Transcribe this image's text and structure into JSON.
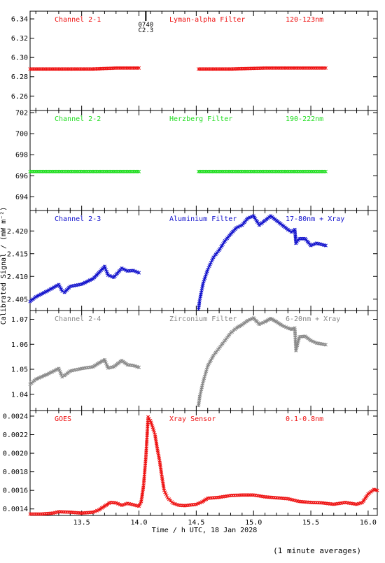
{
  "figure": {
    "ylabel": "Calibrated Signal / (mW m⁻²)",
    "xlabel": "Time / h UTC, 18 Jan 2028",
    "footnote": "(1 minute averages)",
    "flare_marker": {
      "time": "0740",
      "class": "C2.3",
      "x": 14.06
    }
  },
  "chart_data": [
    {
      "type": "scatter",
      "channel": "Channel 2-1",
      "filter": "Lyman-alpha Filter",
      "band": "120-123nm",
      "color": "#ee1111",
      "xlim": [
        13.05,
        16.08
      ],
      "ylim": [
        6.245,
        6.348
      ],
      "yticks": [
        6.26,
        6.28,
        6.3,
        6.32,
        6.34
      ],
      "ytick_labels": [
        "6.26",
        "6.28",
        "6.30",
        "6.32",
        "6.34"
      ],
      "series": [
        {
          "segment": 1,
          "x": [
            13.05,
            13.3,
            13.6,
            13.8,
            14.0
          ],
          "y": [
            6.288,
            6.288,
            6.288,
            6.289,
            6.289
          ]
        },
        {
          "segment": 2,
          "x": [
            14.52,
            14.8,
            15.1,
            15.4,
            15.63
          ],
          "y": [
            6.288,
            6.288,
            6.289,
            6.289,
            6.289
          ]
        }
      ]
    },
    {
      "type": "scatter",
      "channel": "Channel 2-2",
      "filter": "Herzberg Filter",
      "band": "190-222nm",
      "color": "#22dd22",
      "xlim": [
        13.05,
        16.08
      ],
      "ylim": [
        692.7,
        702.2
      ],
      "yticks": [
        694,
        696,
        698,
        700,
        702
      ],
      "ytick_labels": [
        "694",
        "696",
        "698",
        "700",
        "702"
      ],
      "series": [
        {
          "segment": 1,
          "x": [
            13.05,
            13.3,
            13.6,
            13.8,
            14.0
          ],
          "y": [
            696.4,
            696.4,
            696.4,
            696.4,
            696.4
          ]
        },
        {
          "segment": 2,
          "x": [
            14.52,
            14.8,
            15.1,
            15.4,
            15.63
          ],
          "y": [
            696.4,
            696.4,
            696.4,
            696.4,
            696.4
          ]
        }
      ]
    },
    {
      "type": "scatter",
      "channel": "Channel 2-3",
      "filter": "Aluminium Filter",
      "band": "17-80nm + Xray",
      "color": "#1111cc",
      "xlim": [
        13.05,
        16.08
      ],
      "ylim": [
        2.4025,
        2.4245
      ],
      "yticks": [
        2.405,
        2.41,
        2.415,
        2.42
      ],
      "ytick_labels": [
        "2.405",
        "2.410",
        "2.415",
        "2.420"
      ],
      "series": [
        {
          "segment": 1,
          "x": [
            13.05,
            13.1,
            13.2,
            13.3,
            13.33,
            13.35,
            13.4,
            13.5,
            13.6,
            13.65,
            13.7,
            13.73,
            13.78,
            13.85,
            13.9,
            13.95,
            14.0
          ],
          "y": [
            2.4045,
            2.4055,
            2.4068,
            2.4082,
            2.4068,
            2.4065,
            2.4078,
            2.4083,
            2.4095,
            2.4108,
            2.4122,
            2.4103,
            2.4098,
            2.4118,
            2.4112,
            2.4113,
            2.4108
          ]
        },
        {
          "segment": 2,
          "x": [
            14.52,
            14.53,
            14.56,
            14.6,
            14.65,
            14.7,
            14.75,
            14.8,
            14.85,
            14.9,
            14.95,
            15.0,
            15.05,
            15.1,
            15.15,
            15.2,
            15.25,
            15.3,
            15.33,
            15.36,
            15.37,
            15.4,
            15.45,
            15.5,
            15.55,
            15.63
          ],
          "y": [
            2.4028,
            2.4048,
            2.4085,
            2.4115,
            2.4142,
            2.4158,
            2.4178,
            2.4193,
            2.4207,
            2.4213,
            2.4228,
            2.4233,
            2.4213,
            2.4223,
            2.4233,
            2.4223,
            2.4213,
            2.4203,
            2.4198,
            2.4203,
            2.4173,
            2.4183,
            2.4183,
            2.4168,
            2.4173,
            2.4168
          ]
        }
      ]
    },
    {
      "type": "scatter",
      "channel": "Channel 2-4",
      "filter": "Zirconium Filter",
      "band": "6-20nm + Xray",
      "color": "#888888",
      "xlim": [
        13.05,
        16.08
      ],
      "ylim": [
        1.0335,
        1.0735
      ],
      "yticks": [
        1.04,
        1.05,
        1.06,
        1.07
      ],
      "ytick_labels": [
        "1.04",
        "1.05",
        "1.06",
        "1.07"
      ],
      "series": [
        {
          "segment": 1,
          "x": [
            13.05,
            13.1,
            13.2,
            13.3,
            13.33,
            13.35,
            13.4,
            13.5,
            13.6,
            13.65,
            13.7,
            13.73,
            13.78,
            13.85,
            13.9,
            13.95,
            14.0
          ],
          "y": [
            1.044,
            1.046,
            1.048,
            1.0503,
            1.047,
            1.0475,
            1.0493,
            1.0503,
            1.051,
            1.0525,
            1.0538,
            1.0505,
            1.051,
            1.0535,
            1.0518,
            1.0515,
            1.0508
          ]
        },
        {
          "segment": 2,
          "x": [
            14.52,
            14.53,
            14.56,
            14.6,
            14.65,
            14.7,
            14.75,
            14.8,
            14.85,
            14.9,
            14.95,
            15.0,
            15.05,
            15.1,
            15.15,
            15.2,
            15.25,
            15.3,
            15.33,
            15.36,
            15.37,
            15.4,
            15.45,
            15.5,
            15.55,
            15.63
          ],
          "y": [
            1.0355,
            1.039,
            1.045,
            1.0513,
            1.0555,
            1.0585,
            1.0615,
            1.0645,
            1.0665,
            1.0678,
            1.0695,
            1.0705,
            1.068,
            1.069,
            1.0703,
            1.069,
            1.0675,
            1.0665,
            1.066,
            1.0665,
            1.0575,
            1.063,
            1.0632,
            1.0615,
            1.0605,
            1.0598
          ]
        }
      ]
    },
    {
      "type": "scatter",
      "channel": "GOES",
      "filter": "Xray Sensor",
      "band": "0.1-0.8nm",
      "color": "#ee1111",
      "xlim": [
        13.05,
        16.08
      ],
      "ylim": [
        0.00133,
        0.00246
      ],
      "yticks": [
        0.0014,
        0.0016,
        0.0018,
        0.002,
        0.0022,
        0.0024
      ],
      "ytick_labels": [
        "0.0014",
        "0.0016",
        "0.0018",
        "0.0020",
        "0.0022",
        "0.0024"
      ],
      "xticks": [
        13.5,
        14.0,
        14.5,
        15.0,
        15.5,
        16.0
      ],
      "xtick_labels": [
        "13.5",
        "14.0",
        "14.5",
        "15.0",
        "15.5",
        "16.0"
      ],
      "series": [
        {
          "segment": 1,
          "x": [
            13.05,
            13.15,
            13.25,
            13.3,
            13.4,
            13.5,
            13.6,
            13.65,
            13.7,
            13.75,
            13.8,
            13.85,
            13.9,
            13.95,
            14.0,
            14.02,
            14.04,
            14.06,
            14.08,
            14.1,
            14.12,
            14.14,
            14.16,
            14.18,
            14.2,
            14.22,
            14.25,
            14.3,
            14.35,
            14.4,
            14.5,
            14.55,
            14.6,
            14.7,
            14.8,
            14.9,
            15.0,
            15.1,
            15.2,
            15.3,
            15.4,
            15.5,
            15.6,
            15.7,
            15.8,
            15.9,
            15.95,
            16.0,
            16.05,
            16.08
          ],
          "y": [
            0.001345,
            0.001345,
            0.001355,
            0.00137,
            0.001365,
            0.001355,
            0.001365,
            0.00139,
            0.00143,
            0.00147,
            0.001465,
            0.00144,
            0.00146,
            0.001445,
            0.00143,
            0.00148,
            0.00165,
            0.00195,
            0.00239,
            0.00235,
            0.00228,
            0.0022,
            0.00205,
            0.00192,
            0.00175,
            0.0016,
            0.00152,
            0.00146,
            0.00144,
            0.001435,
            0.00145,
            0.001475,
            0.001515,
            0.001525,
            0.001545,
            0.00155,
            0.00155,
            0.00153,
            0.00152,
            0.00151,
            0.00148,
            0.00147,
            0.001465,
            0.00145,
            0.00147,
            0.00145,
            0.00147,
            0.00156,
            0.00161,
            0.0016
          ]
        }
      ]
    }
  ]
}
